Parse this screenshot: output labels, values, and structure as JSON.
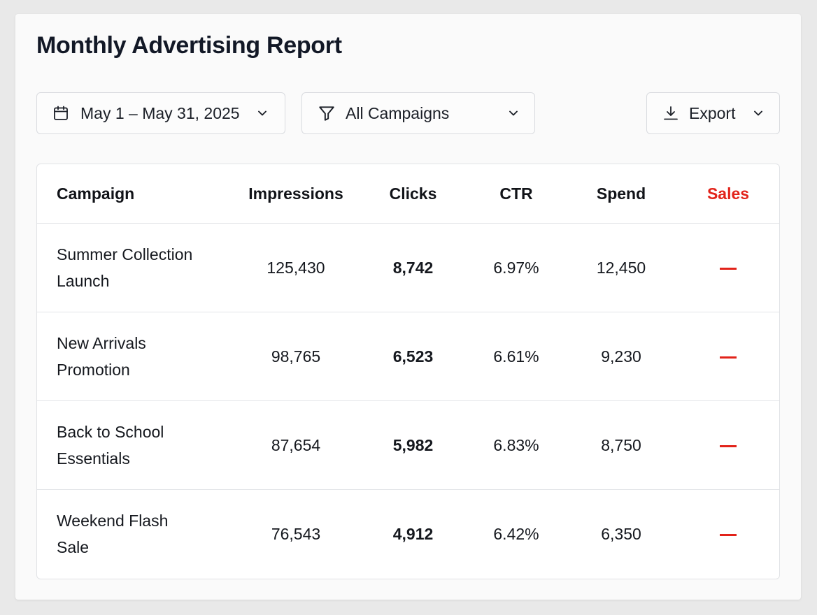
{
  "page": {
    "title": "Monthly Advertising Report"
  },
  "filters": {
    "date_range": {
      "label": "May 1 – May 31, 2025",
      "icon": "calendar-icon"
    },
    "campaign": {
      "label": "All Campaigns",
      "icon": "filter-icon"
    },
    "export": {
      "label": "Export",
      "icon": "download-icon"
    }
  },
  "table": {
    "columns": {
      "campaign": "Campaign",
      "impressions": "Impressions",
      "clicks": "Clicks",
      "ctr": "CTR",
      "spend": "Spend",
      "sales": "Sales"
    },
    "rows": [
      {
        "campaign": [
          "Summer Collection",
          "Launch"
        ],
        "impressions": "125,430",
        "clicks": "8,742",
        "ctr": "6.97%",
        "spend": "12,450",
        "sales": "—"
      },
      {
        "campaign": [
          "New Arrivals",
          "Promotion"
        ],
        "impressions": "98,765",
        "clicks": "6,523",
        "ctr": "6.61%",
        "spend": "9,230",
        "sales": "—"
      },
      {
        "campaign": [
          "Back to School",
          "Essentials"
        ],
        "impressions": "87,654",
        "clicks": "5,982",
        "ctr": "6.83%",
        "spend": "8,750",
        "sales": "—"
      },
      {
        "campaign": [
          "Weekend Flash",
          "Sale"
        ],
        "impressions": "76,543",
        "clicks": "4,912",
        "ctr": "6.42%",
        "spend": "6,350",
        "sales": "—"
      }
    ]
  },
  "colors": {
    "accent_red": "#e2231a",
    "text_primary": "#111318",
    "border": "#e1e3e6"
  }
}
